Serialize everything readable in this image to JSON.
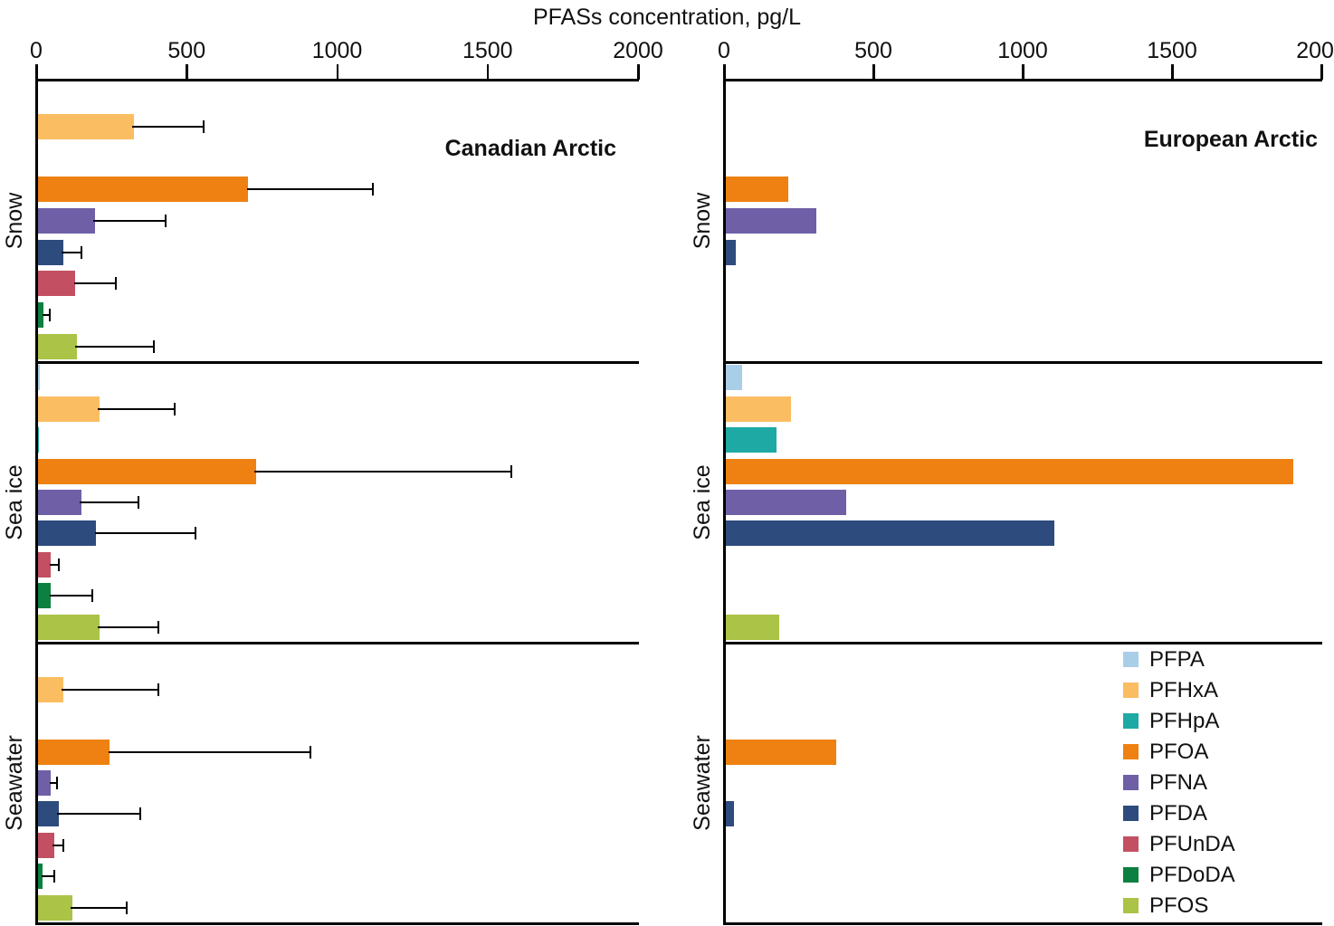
{
  "title": "PFASs concentration, pg/L",
  "chart_data": {
    "type": "bar",
    "orientation": "horizontal-grouped",
    "title": "PFASs concentration, pg/L",
    "x_axis": {
      "label": "PFASs concentration, pg/L",
      "min": 0,
      "max": 2000,
      "ticks": [
        0,
        500,
        1000,
        1500,
        2000
      ],
      "position": "top"
    },
    "grid": false,
    "compounds": [
      {
        "name": "PFPA",
        "color": "#a9cfe8"
      },
      {
        "name": "PFHxA",
        "color": "#fbbd62"
      },
      {
        "name": "PFHpA",
        "color": "#1fa9a4"
      },
      {
        "name": "PFOA",
        "color": "#ee8111"
      },
      {
        "name": "PFNA",
        "color": "#6f5fa7"
      },
      {
        "name": "PFDA",
        "color": "#2e4b7e"
      },
      {
        "name": "PFUnDA",
        "color": "#c25062"
      },
      {
        "name": "PFDoDA",
        "color": "#0c8040"
      },
      {
        "name": "PFOS",
        "color": "#abc346"
      }
    ],
    "panels": [
      {
        "title": "Canadian Arctic",
        "groups": [
          {
            "label": "Snow",
            "values": {
              "PFHxA": 320,
              "PFOA": 700,
              "PFNA": 190,
              "PFDA": 85,
              "PFUnDA": 125,
              "PFDoDA": 20,
              "PFOS": 130
            },
            "errors_upper": {
              "PFHxA": 555,
              "PFOA": 1120,
              "PFNA": 430,
              "PFDA": 150,
              "PFUnDA": 265,
              "PFDoDA": 45,
              "PFOS": 390
            }
          },
          {
            "label": "Sea ice",
            "values": {
              "PFPA": 8,
              "PFHxA": 205,
              "PFHpA": 6,
              "PFOA": 725,
              "PFNA": 145,
              "PFDA": 195,
              "PFUnDA": 45,
              "PFDoDA": 45,
              "PFOS": 205
            },
            "errors_upper": {
              "PFHxA": 460,
              "PFOA": 1580,
              "PFNA": 340,
              "PFDA": 530,
              "PFUnDA": 75,
              "PFDoDA": 185,
              "PFOS": 405
            }
          },
          {
            "label": "Seawater",
            "values": {
              "PFHxA": 85,
              "PFOA": 240,
              "PFNA": 45,
              "PFDA": 70,
              "PFUnDA": 55,
              "PFDoDA": 18,
              "PFOS": 115
            },
            "errors_upper": {
              "PFHxA": 405,
              "PFOA": 910,
              "PFNA": 70,
              "PFDA": 345,
              "PFUnDA": 90,
              "PFDoDA": 60,
              "PFOS": 300
            }
          }
        ]
      },
      {
        "title": "European Arctic",
        "groups": [
          {
            "label": "Snow",
            "values": {
              "PFOA": 210,
              "PFNA": 305,
              "PFDA": 35
            },
            "errors_upper": {}
          },
          {
            "label": "Sea ice",
            "values": {
              "PFPA": 55,
              "PFHxA": 220,
              "PFHpA": 170,
              "PFOA": 1900,
              "PFNA": 405,
              "PFDA": 1100,
              "PFOS": 180
            },
            "errors_upper": {}
          },
          {
            "label": "Seawater",
            "values": {
              "PFOA": 370,
              "PFDA": 30
            },
            "errors_upper": {}
          }
        ]
      }
    ],
    "legend": {
      "position": "bottom-right",
      "items": [
        "PFPA",
        "PFHxA",
        "PFHpA",
        "PFOA",
        "PFNA",
        "PFDA",
        "PFUnDA",
        "PFDoDA",
        "PFOS"
      ]
    }
  }
}
